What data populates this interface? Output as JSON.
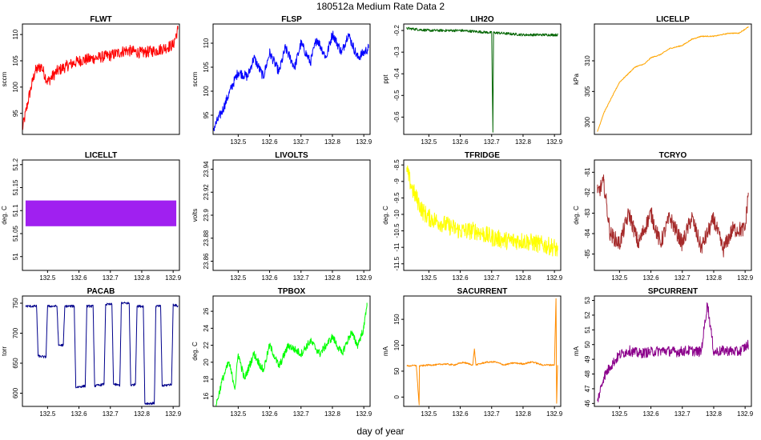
{
  "title": "180512a   Medium Rate Data 2",
  "xlabel": "day of year",
  "chart_data": [
    {
      "type": "line",
      "title": "FLWT",
      "ylabel": "sccm",
      "color": "#ff0000",
      "xlim": [
        132.42,
        132.92
      ],
      "ylim": [
        91,
        112
      ],
      "yticks": [
        95,
        100,
        105,
        110
      ],
      "xticks": [],
      "series": [
        {
          "name": "FLWT",
          "x": [
            132.42,
            132.44,
            132.46,
            132.48,
            132.5,
            132.53,
            132.56,
            132.6,
            132.65,
            132.7,
            132.75,
            132.8,
            132.85,
            132.9,
            132.915
          ],
          "y": [
            92,
            98,
            103,
            104,
            101,
            103,
            104,
            105,
            105.5,
            106,
            107,
            106.5,
            107,
            108,
            111
          ],
          "noise": 2.2
        }
      ]
    },
    {
      "type": "line",
      "title": "FLSP",
      "ylabel": "sccm",
      "color": "#0000ff",
      "xlim": [
        132.42,
        132.92
      ],
      "ylim": [
        91,
        114
      ],
      "yticks": [
        95,
        100,
        105,
        110
      ],
      "xticks": [
        132.5,
        132.6,
        132.7,
        132.8,
        132.9
      ],
      "series": [
        {
          "name": "FLSP",
          "x": [
            132.42,
            132.45,
            132.48,
            132.5,
            132.53,
            132.55,
            132.58,
            132.6,
            132.63,
            132.65,
            132.68,
            132.7,
            132.73,
            132.75,
            132.78,
            132.8,
            132.83,
            132.85,
            132.88,
            132.9,
            132.915
          ],
          "y": [
            92,
            96,
            101,
            104,
            103,
            107,
            103,
            108,
            104,
            109,
            105,
            110,
            106,
            111,
            107,
            112,
            108,
            112,
            107,
            108,
            109
          ],
          "noise": 2.0
        }
      ]
    },
    {
      "type": "line",
      "title": "LIH2O",
      "ylabel": "ppt",
      "color": "#006400",
      "xlim": [
        132.42,
        132.92
      ],
      "ylim": [
        -0.68,
        -0.17
      ],
      "yticks": [
        -0.6,
        -0.5,
        -0.4,
        -0.3,
        -0.2
      ],
      "xticks": [
        132.5,
        132.6,
        132.7,
        132.8,
        132.9
      ],
      "series": [
        {
          "name": "LIH2O",
          "x": [
            132.43,
            132.5,
            132.6,
            132.7,
            132.704,
            132.706,
            132.71,
            132.8,
            132.9,
            132.91
          ],
          "y": [
            -0.19,
            -0.2,
            -0.2,
            -0.21,
            -0.67,
            -0.21,
            -0.21,
            -0.22,
            -0.22,
            -0.22
          ],
          "noise": 0.012
        }
      ]
    },
    {
      "type": "line",
      "title": "LICELLP",
      "ylabel": "kPa",
      "color": "#ffa500",
      "xlim": [
        132.42,
        132.92
      ],
      "ylim": [
        298,
        316
      ],
      "yticks": [
        300,
        305,
        310
      ],
      "xticks": [],
      "series": [
        {
          "name": "LICELLP",
          "x": [
            132.43,
            132.45,
            132.48,
            132.5,
            132.53,
            132.55,
            132.58,
            132.6,
            132.63,
            132.66,
            132.7,
            132.73,
            132.76,
            132.8,
            132.85,
            132.88,
            132.91
          ],
          "y": [
            298.5,
            301.5,
            304.5,
            306.5,
            308,
            309,
            309.5,
            310.5,
            311,
            312,
            312.5,
            313.5,
            314,
            314,
            314.5,
            314.5,
            315.5
          ],
          "noise": 0.15
        }
      ]
    },
    {
      "type": "area",
      "title": "LICELLT",
      "ylabel": "deg. C",
      "color": "#a020f0",
      "xlim": [
        132.42,
        132.92
      ],
      "ylim": [
        50.97,
        51.21
      ],
      "yticks": [
        51.0,
        51.05,
        51.1,
        51.15,
        51.2
      ],
      "xticks": [
        132.5,
        132.6,
        132.7,
        132.8,
        132.9
      ],
      "series": [
        {
          "name": "LICELLT",
          "x": [
            132.43,
            132.91
          ],
          "ymin": 51.066,
          "ymax": 51.122
        }
      ]
    },
    {
      "type": "line",
      "title": "LIVOLTS",
      "ylabel": "volts",
      "color": "#000000",
      "xlim": [
        132.42,
        132.92
      ],
      "ylim": [
        23.852,
        23.948
      ],
      "yticks": [
        23.86,
        23.88,
        23.9,
        23.92,
        23.94
      ],
      "xticks": [
        132.5,
        132.6,
        132.7,
        132.8,
        132.9
      ],
      "series": []
    },
    {
      "type": "line",
      "title": "TFRIDGE",
      "ylabel": "deg. C",
      "color": "#ffff00",
      "xlim": [
        132.42,
        132.92
      ],
      "ylim": [
        -11.7,
        -8.35
      ],
      "yticks": [
        -11.5,
        -11.0,
        -10.5,
        -10.0,
        -9.5,
        -9.0,
        -8.5
      ],
      "xticks": [
        132.5,
        132.6,
        132.7,
        132.8,
        132.9
      ],
      "series": [
        {
          "name": "TFRIDGE",
          "x": [
            132.43,
            132.45,
            132.48,
            132.5,
            132.55,
            132.6,
            132.65,
            132.7,
            132.75,
            132.8,
            132.85,
            132.9,
            132.91
          ],
          "y": [
            -8.7,
            -9.3,
            -9.9,
            -10.1,
            -10.3,
            -10.5,
            -10.5,
            -10.7,
            -10.8,
            -10.8,
            -10.9,
            -11.0,
            -11.1
          ],
          "noise": 0.55
        }
      ]
    },
    {
      "type": "line",
      "title": "TCRYO",
      "ylabel": "deg. C",
      "color": "#a52a2a",
      "xlim": [
        132.42,
        132.92
      ],
      "ylim": [
        -85.8,
        -80.4
      ],
      "yticks": [
        -85,
        -84,
        -83,
        -82,
        -81
      ],
      "xticks": [
        132.5,
        132.6,
        132.7,
        132.8,
        132.9
      ],
      "series": [
        {
          "name": "TCRYO",
          "x": [
            132.43,
            132.45,
            132.47,
            132.5,
            132.53,
            132.56,
            132.6,
            132.63,
            132.66,
            132.7,
            132.73,
            132.76,
            132.8,
            132.83,
            132.86,
            132.9,
            132.91
          ],
          "y": [
            -82,
            -81.5,
            -84,
            -84.5,
            -83,
            -84.5,
            -83,
            -84.5,
            -83.2,
            -84.5,
            -83.2,
            -84.7,
            -83.3,
            -84.8,
            -83.8,
            -83.8,
            -82
          ],
          "noise": 0.8
        }
      ]
    },
    {
      "type": "line",
      "title": "PACAB",
      "ylabel": "torr",
      "color": "#00008b",
      "xlim": [
        132.42,
        132.92
      ],
      "ylim": [
        578,
        762
      ],
      "yticks": [
        600,
        650,
        700,
        750
      ],
      "xticks": [
        132.5,
        132.6,
        132.7,
        132.8,
        132.9
      ],
      "series": [
        {
          "name": "PACAB",
          "x": [
            132.43,
            132.465,
            132.47,
            132.495,
            132.5,
            132.53,
            132.535,
            132.55,
            132.555,
            132.585,
            132.59,
            132.62,
            132.625,
            132.645,
            132.65,
            132.68,
            132.685,
            132.705,
            132.71,
            132.73,
            132.735,
            132.76,
            132.765,
            132.78,
            132.785,
            132.805,
            132.81,
            132.84,
            132.845,
            132.86,
            132.865,
            132.895,
            132.9,
            132.915
          ],
          "y": [
            745,
            745,
            662,
            660,
            745,
            745,
            680,
            680,
            745,
            745,
            610,
            612,
            745,
            745,
            612,
            615,
            748,
            748,
            615,
            613,
            750,
            750,
            613,
            615,
            745,
            745,
            583,
            583,
            745,
            745,
            612,
            615,
            748,
            745
          ],
          "noise": 4
        }
      ]
    },
    {
      "type": "line",
      "title": "TPBOX",
      "ylabel": "deg. C",
      "color": "#00ff00",
      "xlim": [
        132.42,
        132.92
      ],
      "ylim": [
        14.8,
        27.8
      ],
      "yticks": [
        16,
        18,
        20,
        22,
        24,
        26
      ],
      "xticks": [
        132.5,
        132.6,
        132.7,
        132.8,
        132.9
      ],
      "series": [
        {
          "name": "TPBOX",
          "x": [
            132.43,
            132.45,
            132.47,
            132.49,
            132.5,
            132.52,
            132.55,
            132.58,
            132.6,
            132.63,
            132.66,
            132.7,
            132.73,
            132.76,
            132.8,
            132.83,
            132.86,
            132.88,
            132.9,
            132.91
          ],
          "y": [
            15,
            18,
            20,
            17,
            21,
            18,
            21,
            19,
            22,
            19.5,
            22,
            21,
            22.5,
            21,
            23,
            21,
            23.5,
            22,
            24,
            27
          ],
          "noise": 0.9
        }
      ]
    },
    {
      "type": "line",
      "title": "SACURRENT",
      "ylabel": "mA",
      "color": "#ff8c00",
      "xlim": [
        132.42,
        132.92
      ],
      "ylim": [
        -18,
        195
      ],
      "yticks": [
        0,
        50,
        100,
        150
      ],
      "xticks": [
        132.5,
        132.6,
        132.7,
        132.8,
        132.9
      ],
      "series": [
        {
          "name": "SACURRENT",
          "x": [
            132.43,
            132.46,
            132.469,
            132.47,
            132.471,
            132.5,
            132.52,
            132.55,
            132.58,
            132.61,
            132.64,
            132.645,
            132.65,
            132.68,
            132.71,
            132.74,
            132.77,
            132.8,
            132.83,
            132.86,
            132.9,
            132.905,
            132.907,
            132.91
          ],
          "y": [
            60,
            61,
            -15,
            60,
            60,
            62,
            62,
            64,
            62,
            67,
            62,
            93,
            62,
            67,
            68,
            62,
            66,
            64,
            68,
            62,
            62,
            190,
            -12,
            60
          ],
          "noise": 3
        }
      ]
    },
    {
      "type": "line",
      "title": "SPCURRENT",
      "ylabel": "mA",
      "color": "#8b008b",
      "xlim": [
        132.42,
        132.92
      ],
      "ylim": [
        45.8,
        53.3
      ],
      "yticks": [
        46,
        47,
        48,
        49,
        50,
        51,
        52,
        53
      ],
      "xticks": [
        132.5,
        132.6,
        132.7,
        132.8,
        132.9
      ],
      "series": [
        {
          "name": "SPCURRENT",
          "x": [
            132.43,
            132.45,
            132.47,
            132.5,
            132.53,
            132.56,
            132.6,
            132.64,
            132.68,
            132.72,
            132.76,
            132.78,
            132.8,
            132.84,
            132.88,
            132.91
          ],
          "y": [
            46.2,
            47.8,
            48.5,
            49.3,
            49.6,
            49.4,
            49.5,
            49.6,
            49.5,
            49.6,
            49.5,
            52.8,
            49.5,
            49.6,
            49.5,
            50
          ],
          "noise": 0.7
        }
      ]
    }
  ]
}
